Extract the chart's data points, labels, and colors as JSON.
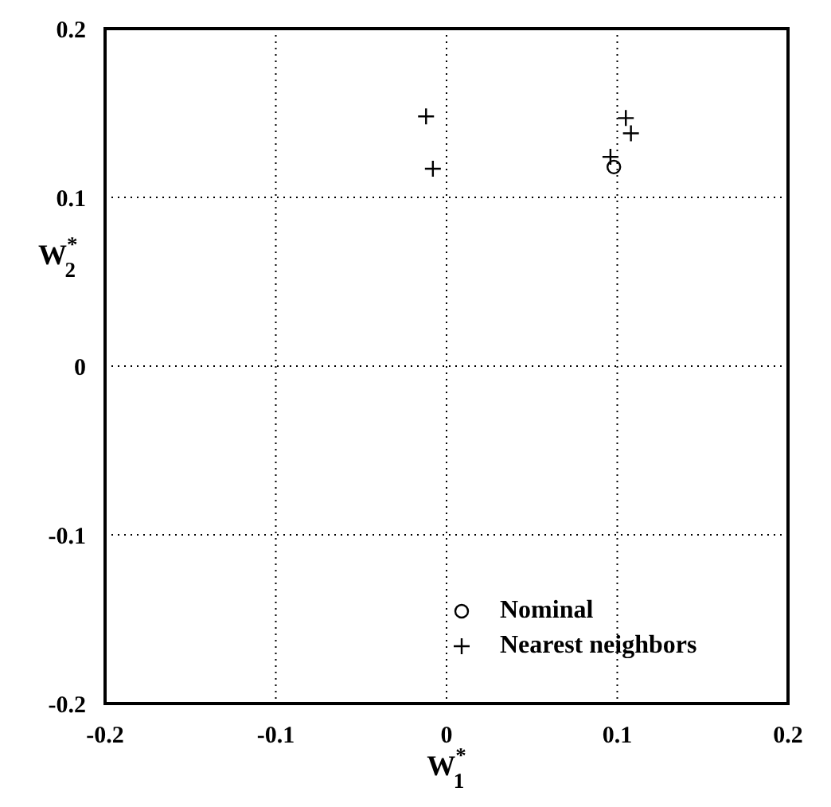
{
  "chart_data": {
    "type": "scatter",
    "xlabel": "W$^{*}$$_{1}$",
    "ylabel": "W$^{*}$$_{2}$",
    "series": [
      {
        "name": "Nominal",
        "color": "#000000",
        "marker": "circle",
        "x": [
          0.098
        ],
        "values": [
          0.118
        ]
      },
      {
        "name": "Nearest neighbors",
        "color": "#000000",
        "marker": "cross",
        "x": [
          -0.012,
          -0.008,
          0.096,
          0.105,
          0.108
        ],
        "values": [
          0.148,
          0.117,
          0.124,
          0.147,
          0.138
        ]
      }
    ],
    "xlim": [
      -0.2,
      0.2
    ],
    "xticks": [
      {
        "value": -0.2,
        "label": "-0.2"
      },
      {
        "value": -0.1,
        "label": "-0.1"
      },
      0,
      0.1,
      0.2
    ],
    "ylim": [
      -0.2,
      0.2
    ],
    "yticks": [
      {
        "value": -0.2,
        "label": "-0.2"
      },
      {
        "value": -0.1,
        "label": "-0.1"
      },
      0,
      0.1,
      0.2
    ],
    "grid": true,
    "legend": "bottom right"
  }
}
